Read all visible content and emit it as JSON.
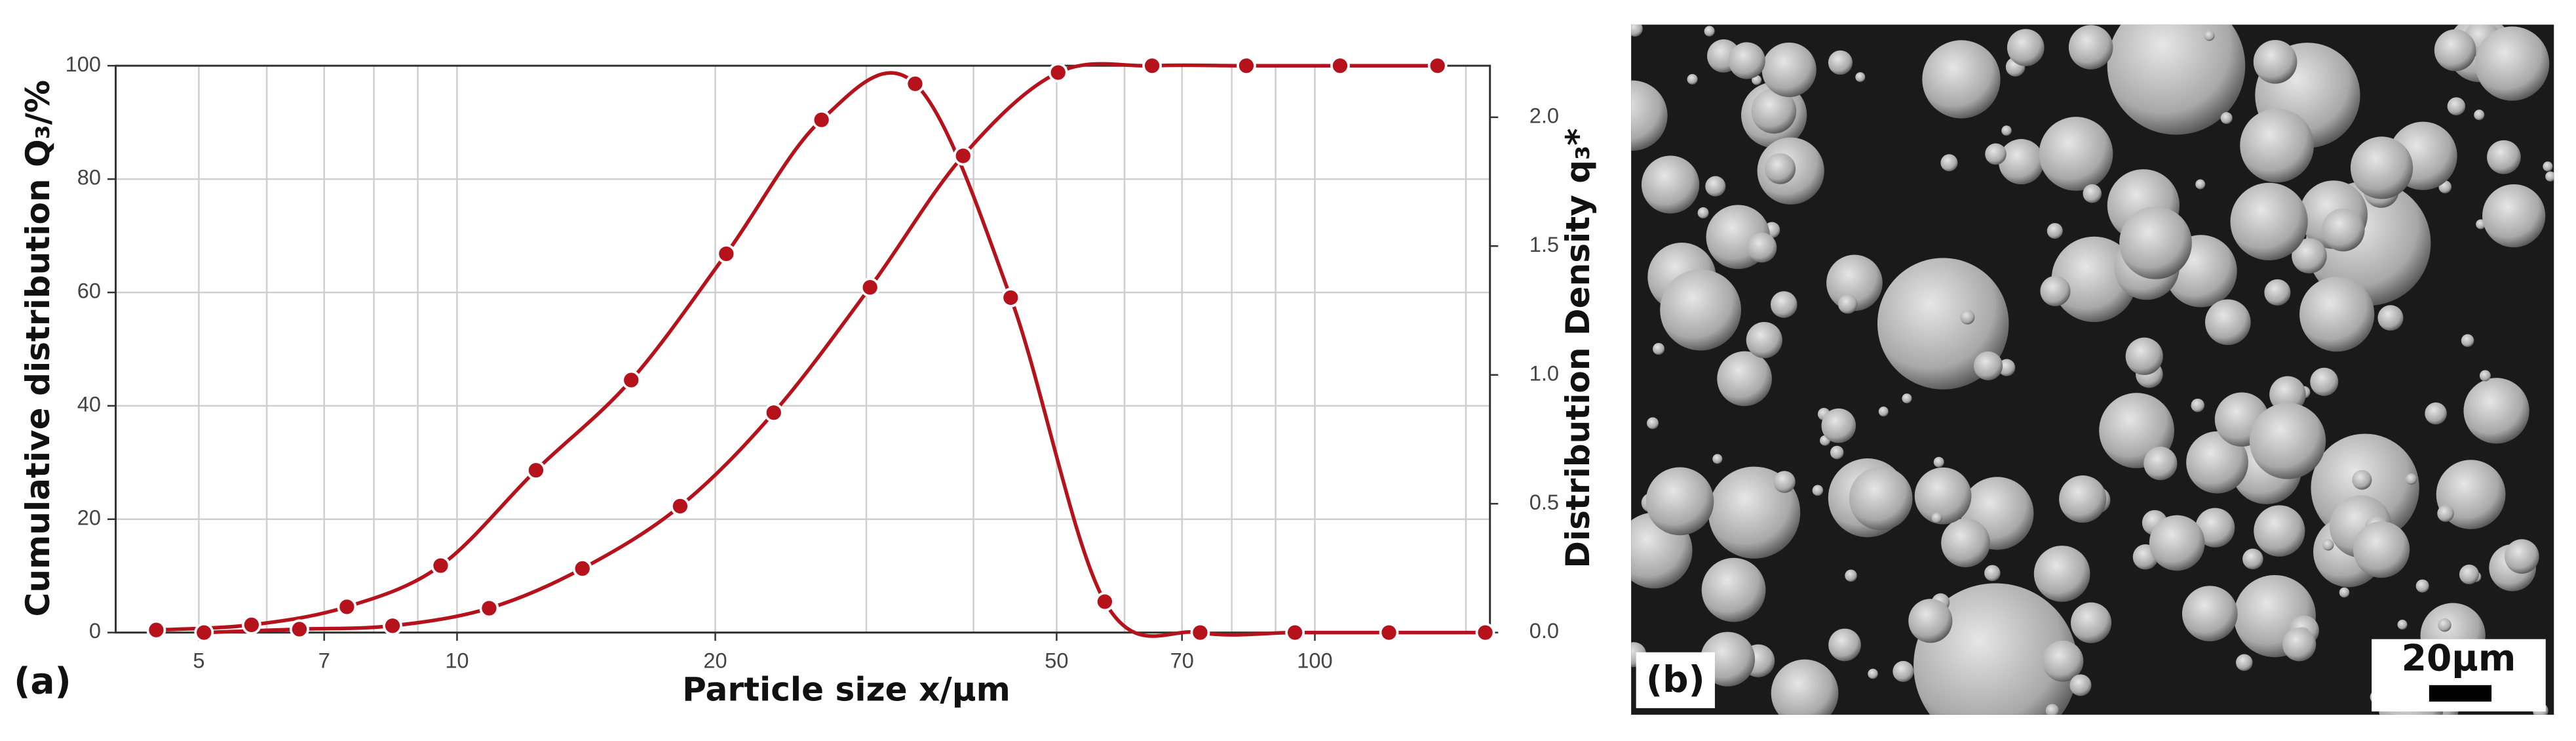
{
  "chart_data": {
    "type": "line",
    "panel_label": "(a)",
    "x_label": "Particle size x/µm",
    "y_label": "Cumulative distribution Q₃/%",
    "y2_label": "Distribution Density q₃*",
    "log_x": true,
    "grid": true,
    "xlim": [
      4,
      160
    ],
    "xticks": [
      5,
      7,
      10,
      20,
      50,
      70,
      100
    ],
    "xgrid_minor": [
      6,
      8,
      9,
      30,
      40,
      60,
      80,
      90,
      150
    ],
    "ylim": [
      0,
      100
    ],
    "yticks": [
      0,
      20,
      40,
      60,
      80,
      100
    ],
    "y2lim": [
      0,
      2.2
    ],
    "y2ticks": [
      {
        "value": 0,
        "label": "0.0"
      },
      0.5,
      {
        "value": 1,
        "label": "1.0"
      },
      1.5,
      {
        "value": 2,
        "label": "2.0"
      }
    ],
    "series": [
      {
        "x": [
          5.07,
          6.55,
          8.41,
          10.9,
          14.0,
          18.2,
          23.4,
          30.3,
          38.9,
          50.2,
          64.6,
          83.2,
          107,
          139
        ],
        "values": [
          0,
          0.6,
          1.2,
          4.3,
          11.3,
          22.3,
          38.8,
          60.9,
          84.1,
          98.8,
          100,
          100,
          100,
          100
        ],
        "color": "#b5121b"
      },
      {
        "axis": "y2",
        "x": [
          4.46,
          5.76,
          7.44,
          9.57,
          12.36,
          15.96,
          20.6,
          26.6,
          34.2,
          44.2,
          56.9,
          73.5,
          94.8,
          122,
          158
        ],
        "values": [
          0.01,
          0.03,
          0.1,
          0.26,
          0.63,
          0.98,
          1.47,
          1.99,
          2.13,
          1.3,
          0.12,
          0,
          0,
          0,
          0
        ],
        "color": "#b5121b"
      }
    ]
  },
  "image_panel": {
    "panel_label": "(b)",
    "scale_bar": "20µm"
  }
}
